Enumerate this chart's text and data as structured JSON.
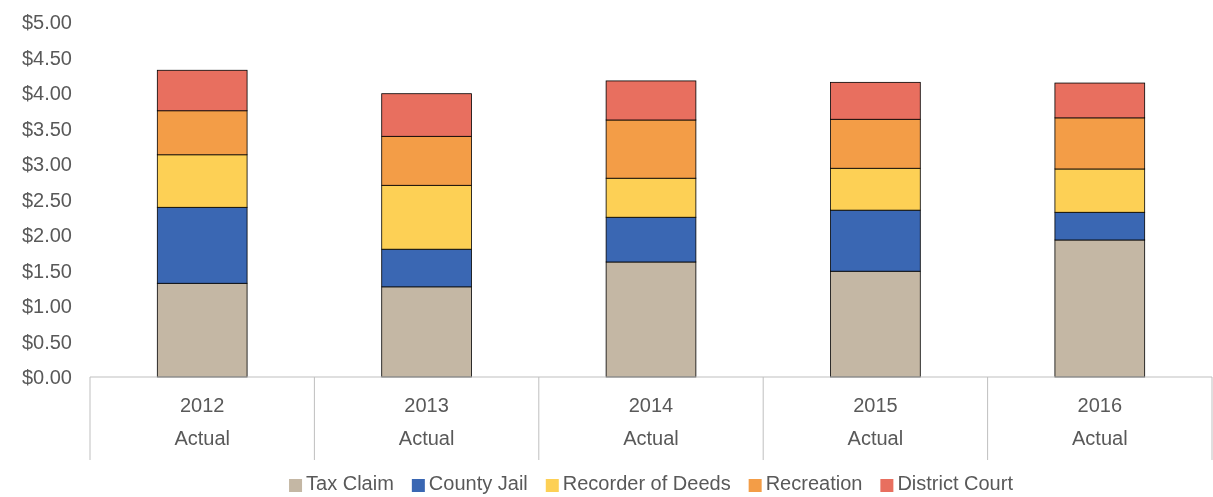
{
  "chart_data": {
    "type": "bar",
    "stacked": true,
    "categories": [
      "2012\nActual",
      "2013\nActual",
      "2014\nActual",
      "2015\nActual",
      "2016\nActual"
    ],
    "series": [
      {
        "name": "Tax Claim",
        "color": "#c4b7a4",
        "values": [
          1.32,
          1.27,
          1.62,
          1.49,
          1.93
        ]
      },
      {
        "name": "County Jail",
        "color": "#3a67b3",
        "values": [
          1.07,
          0.53,
          0.63,
          0.86,
          0.39
        ]
      },
      {
        "name": "Recorder of Deeds",
        "color": "#fdd055",
        "values": [
          0.74,
          0.9,
          0.55,
          0.59,
          0.61
        ]
      },
      {
        "name": "Recreation",
        "color": "#f39d47",
        "values": [
          0.62,
          0.69,
          0.82,
          0.69,
          0.72
        ]
      },
      {
        "name": "District Court",
        "color": "#e86f5f",
        "values": [
          0.57,
          0.6,
          0.55,
          0.52,
          0.49
        ]
      }
    ],
    "ylim": [
      0,
      5
    ],
    "yticks": [
      {
        "value": 0,
        "label": "$0.00"
      },
      {
        "value": 0.5,
        "label": "$0.50"
      },
      {
        "value": 1,
        "label": "$1.00"
      },
      {
        "value": 1.5,
        "label": "$1.50"
      },
      {
        "value": 2,
        "label": "$2.00"
      },
      {
        "value": 2.5,
        "label": "$2.50"
      },
      {
        "value": 3,
        "label": "$3.00"
      },
      {
        "value": 3.5,
        "label": "$3.50"
      },
      {
        "value": 4,
        "label": "$4.00"
      },
      {
        "value": 4.5,
        "label": "$4.50"
      },
      {
        "value": 5,
        "label": "$5.00"
      }
    ],
    "grid": false,
    "legend": "bottom"
  }
}
